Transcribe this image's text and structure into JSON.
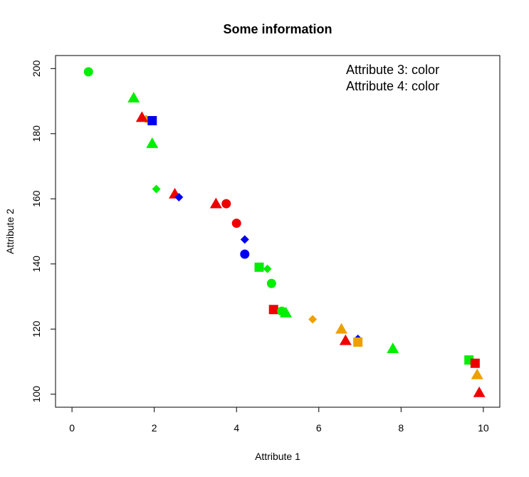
{
  "chart_data": {
    "type": "scatter",
    "title": "Some information",
    "xlabel": "Attribute 1",
    "ylabel": "Attribute 2",
    "xlim": [
      -0.4,
      10.4
    ],
    "ylim": [
      96,
      204
    ],
    "xticks": [
      0,
      2,
      4,
      6,
      8,
      10
    ],
    "yticks": [
      100,
      120,
      140,
      160,
      180,
      200
    ],
    "grid": false,
    "legend": {
      "placement": "top-right",
      "entries": [
        "Attribute 3: color",
        "Attribute 4: color"
      ]
    },
    "colors": {
      "green": "#00ee00",
      "red": "#ee0000",
      "blue": "#0000ee",
      "orange": "#eea000"
    },
    "points": [
      {
        "x": 0.4,
        "y": 199,
        "shape": "circle",
        "color": "green"
      },
      {
        "x": 1.5,
        "y": 191,
        "shape": "triangle",
        "color": "green"
      },
      {
        "x": 1.8,
        "y": 184.5,
        "shape": "diamond",
        "color": "orange"
      },
      {
        "x": 1.7,
        "y": 185,
        "shape": "triangle",
        "color": "red"
      },
      {
        "x": 1.95,
        "y": 184,
        "shape": "square",
        "color": "blue"
      },
      {
        "x": 1.95,
        "y": 177,
        "shape": "triangle",
        "color": "green"
      },
      {
        "x": 2.05,
        "y": 163,
        "shape": "diamond",
        "color": "green"
      },
      {
        "x": 2.5,
        "y": 161.5,
        "shape": "triangle",
        "color": "red"
      },
      {
        "x": 2.6,
        "y": 160.5,
        "shape": "diamond",
        "color": "blue"
      },
      {
        "x": 3.5,
        "y": 158.5,
        "shape": "triangle",
        "color": "red"
      },
      {
        "x": 3.75,
        "y": 158.5,
        "shape": "circle",
        "color": "red"
      },
      {
        "x": 4.0,
        "y": 152.5,
        "shape": "circle",
        "color": "red"
      },
      {
        "x": 4.2,
        "y": 147.5,
        "shape": "diamond",
        "color": "blue"
      },
      {
        "x": 4.2,
        "y": 143,
        "shape": "circle",
        "color": "blue"
      },
      {
        "x": 4.55,
        "y": 139,
        "shape": "square",
        "color": "green"
      },
      {
        "x": 4.75,
        "y": 138.5,
        "shape": "diamond",
        "color": "green"
      },
      {
        "x": 4.85,
        "y": 134,
        "shape": "circle",
        "color": "green"
      },
      {
        "x": 4.9,
        "y": 126,
        "shape": "square",
        "color": "red"
      },
      {
        "x": 5.1,
        "y": 125.5,
        "shape": "circle",
        "color": "green"
      },
      {
        "x": 5.2,
        "y": 125,
        "shape": "triangle",
        "color": "green"
      },
      {
        "x": 5.85,
        "y": 123,
        "shape": "diamond",
        "color": "orange"
      },
      {
        "x": 6.55,
        "y": 120,
        "shape": "triangle",
        "color": "orange"
      },
      {
        "x": 6.95,
        "y": 117,
        "shape": "diamond",
        "color": "blue"
      },
      {
        "x": 6.65,
        "y": 116.5,
        "shape": "triangle",
        "color": "red"
      },
      {
        "x": 6.95,
        "y": 116,
        "shape": "square",
        "color": "orange"
      },
      {
        "x": 7.8,
        "y": 114,
        "shape": "triangle",
        "color": "green"
      },
      {
        "x": 9.65,
        "y": 110.5,
        "shape": "square",
        "color": "green"
      },
      {
        "x": 9.8,
        "y": 109.5,
        "shape": "square",
        "color": "red"
      },
      {
        "x": 9.85,
        "y": 106,
        "shape": "triangle",
        "color": "orange"
      },
      {
        "x": 9.9,
        "y": 100.5,
        "shape": "triangle",
        "color": "red"
      }
    ]
  }
}
